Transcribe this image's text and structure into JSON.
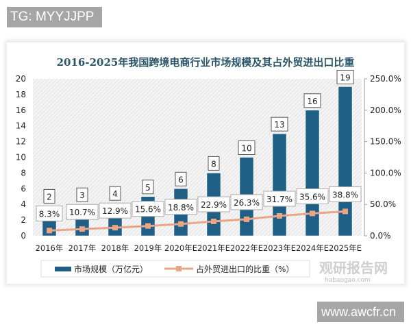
{
  "overlay": {
    "tag": "TG: MYYJJPP",
    "site": "www.awcfr.cn",
    "watermark": "观研报告网",
    "watermark_url": "habaogao.com"
  },
  "colors": {
    "bar": "#1f5f85",
    "line": "#e8a687",
    "title": "#2b5569"
  },
  "chart_data": {
    "type": "bar+line",
    "title": "2016-2025年我国跨境电商行业市场规模及其占外贸进出口比重",
    "categories": [
      "2016年",
      "2017年",
      "2018年",
      "2019年",
      "2020年E",
      "2021年E",
      "2022年E",
      "2023年E",
      "2024年E",
      "2025年E"
    ],
    "series": [
      {
        "name": "市场规模（万亿元）",
        "type": "bar",
        "axis": "left",
        "values": [
          2,
          3,
          4,
          5,
          6,
          8,
          10,
          13,
          16,
          19
        ],
        "labels": [
          "2",
          "3",
          "4",
          "5",
          "6",
          "8",
          "10",
          "13",
          "16",
          "19"
        ]
      },
      {
        "name": "占外贸进出口的比重（%）",
        "type": "line",
        "axis": "right",
        "values": [
          8.3,
          10.7,
          12.9,
          15.6,
          18.8,
          22.9,
          26.3,
          31.7,
          35.6,
          38.8
        ],
        "labels": [
          "8.3%",
          "10.7%",
          "12.9%",
          "15.6%",
          "18.8%",
          "22.9%",
          "26.3%",
          "31.7%",
          "35.6%",
          "38.8%"
        ]
      }
    ],
    "y_left": {
      "lim": [
        0,
        20
      ],
      "ticks": [
        "0",
        "2",
        "4",
        "6",
        "8",
        "10",
        "12",
        "14",
        "16",
        "18",
        "20"
      ]
    },
    "y_right": {
      "lim": [
        0,
        250
      ],
      "ticks": [
        "0.0%",
        "50.0%",
        "100.0%",
        "150.0%",
        "200.0%",
        "250.0%"
      ]
    },
    "legend": "bottom"
  }
}
